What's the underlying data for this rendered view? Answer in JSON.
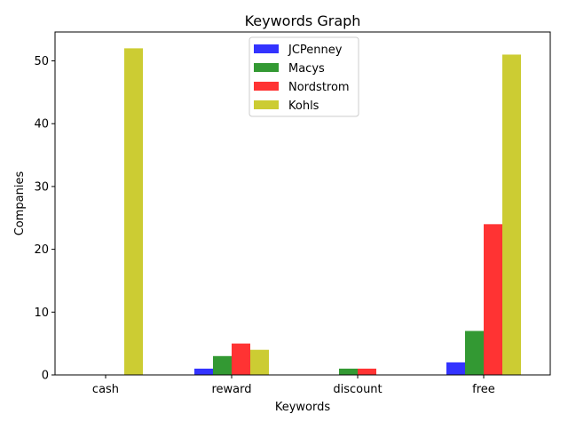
{
  "chart_data": {
    "type": "bar",
    "title": "Keywords Graph",
    "xlabel": "Keywords",
    "ylabel": "Companies",
    "categories": [
      "cash",
      "reward",
      "discount",
      "free"
    ],
    "series": [
      {
        "name": "JCPenney",
        "color": "#3333ff",
        "values": [
          0,
          1,
          0,
          2
        ]
      },
      {
        "name": "Macys",
        "color": "#339933",
        "values": [
          0,
          3,
          1,
          7
        ]
      },
      {
        "name": "Nordstrom",
        "color": "#ff3333",
        "values": [
          0,
          5,
          1,
          24
        ]
      },
      {
        "name": "Kohls",
        "color": "#cccc33",
        "values": [
          52,
          4,
          0,
          51
        ]
      }
    ],
    "yticks": [
      0,
      10,
      20,
      30,
      40,
      50
    ],
    "ylim": [
      0,
      54.6
    ],
    "legend": "top-center",
    "grid": false
  }
}
